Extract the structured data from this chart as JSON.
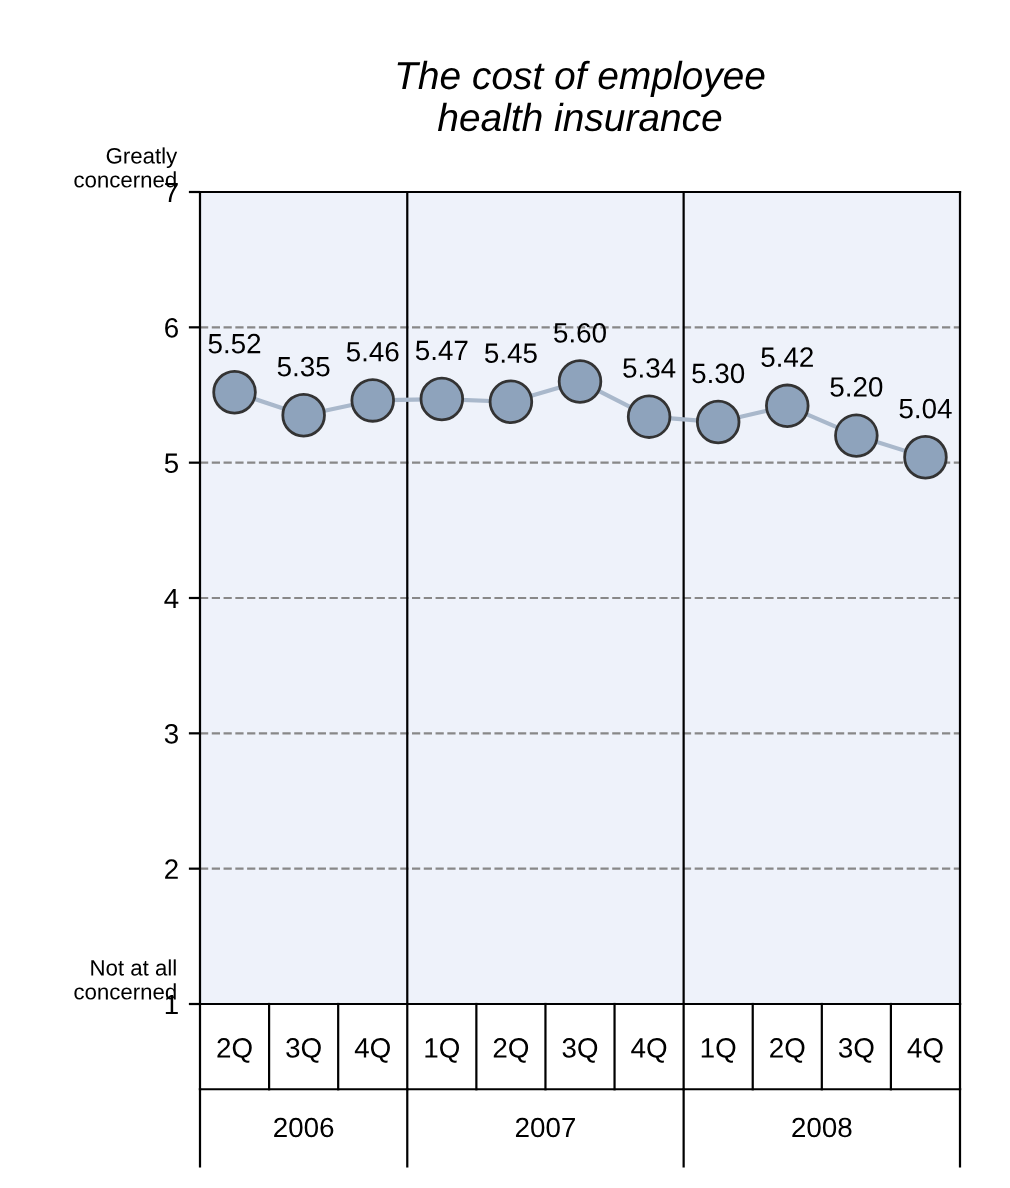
{
  "chart_data": {
    "type": "line",
    "title": "The cost of employee\nhealth insurance",
    "categories": [
      "2Q",
      "3Q",
      "4Q",
      "1Q",
      "2Q",
      "3Q",
      "4Q",
      "1Q",
      "2Q",
      "3Q",
      "4Q"
    ],
    "series": [
      {
        "color": "#8ea3bc",
        "values": [
          5.52,
          5.35,
          5.46,
          5.47,
          5.45,
          5.6,
          5.34,
          5.3,
          5.42,
          5.2,
          5.04
        ],
        "value_labels": [
          "5.52",
          "5.35",
          "5.46",
          "5.47",
          "5.45",
          "5.60",
          "5.34",
          "5.30",
          "5.42",
          "5.20",
          "5.04"
        ]
      }
    ],
    "ylim": [
      1,
      7
    ],
    "yticks": [
      1,
      2,
      3,
      4,
      5,
      6,
      7
    ],
    "grid": "y",
    "marker": "circle",
    "line_style": "solid",
    "annotations": [
      "Greatly\nconcerned",
      "Not at all\nconcerned",
      "2006",
      "2007",
      "2008"
    ]
  }
}
